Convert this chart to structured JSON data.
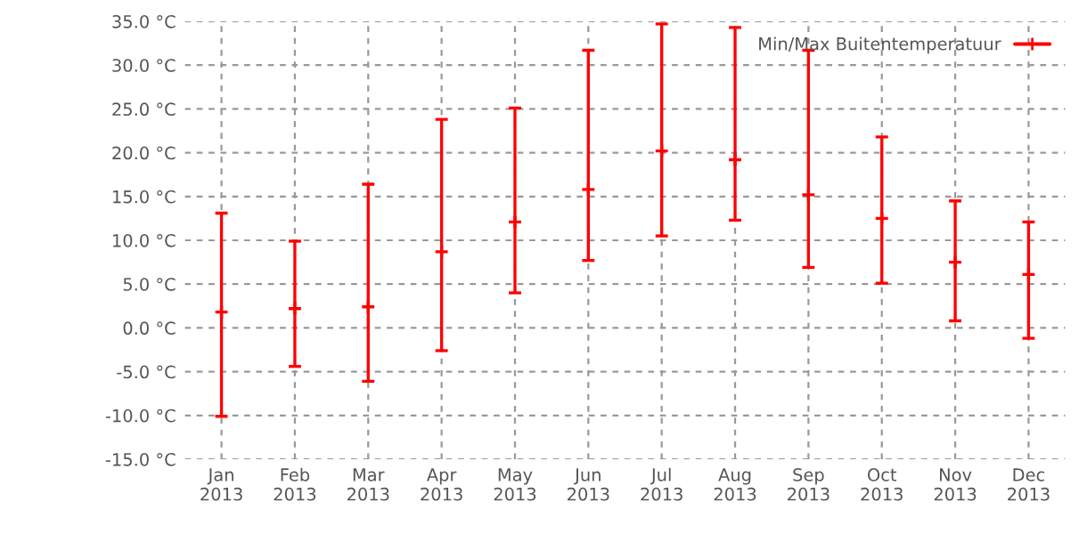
{
  "chart_data": {
    "type": "scatter",
    "categories": [
      "Jan\n2013",
      "Feb\n2013",
      "Mar\n2013",
      "Apr\n2013",
      "May\n2013",
      "Jun\n2013",
      "Jul\n2013",
      "Aug\n2013",
      "Sep\n2013",
      "Oct\n2013",
      "Nov\n2013",
      "Dec\n2013"
    ],
    "series": [
      {
        "name": "Min/Max Buitentemperatuur",
        "color": "#ff0000",
        "values": [
          1.8,
          2.2,
          2.4,
          8.7,
          12.1,
          15.8,
          20.2,
          19.2,
          15.2,
          12.5,
          7.5,
          6.1
        ],
        "errors": [
          [
            -10.1,
            13.1
          ],
          [
            -4.4,
            9.9
          ],
          [
            -6.1,
            16.4
          ],
          [
            -2.6,
            23.8
          ],
          [
            4.0,
            25.1
          ],
          [
            7.7,
            31.7
          ],
          [
            10.5,
            34.7
          ],
          [
            12.3,
            34.3
          ],
          [
            6.9,
            31.7
          ],
          [
            5.1,
            21.8
          ],
          [
            0.8,
            14.5
          ],
          [
            -1.2,
            12.1
          ]
        ]
      }
    ],
    "ylim": [
      -15,
      35
    ],
    "yticks": [
      {
        "value": -15,
        "label": "-15.0 °C"
      },
      {
        "value": -10,
        "label": "-10.0 °C"
      },
      {
        "value": -5,
        "label": "-5.0 °C"
      },
      {
        "value": 0,
        "label": "0.0 °C"
      },
      {
        "value": 5,
        "label": "5.0 °C"
      },
      {
        "value": 10,
        "label": "10.0 °C"
      },
      {
        "value": 15,
        "label": "15.0 °C"
      },
      {
        "value": 20,
        "label": "20.0 °C"
      },
      {
        "value": 25,
        "label": "25.0 °C"
      },
      {
        "value": 30,
        "label": "30.0 °C"
      },
      {
        "value": 35,
        "label": "35.0 °C"
      }
    ],
    "grid": true,
    "legend": "top right",
    "marker": "cross"
  }
}
